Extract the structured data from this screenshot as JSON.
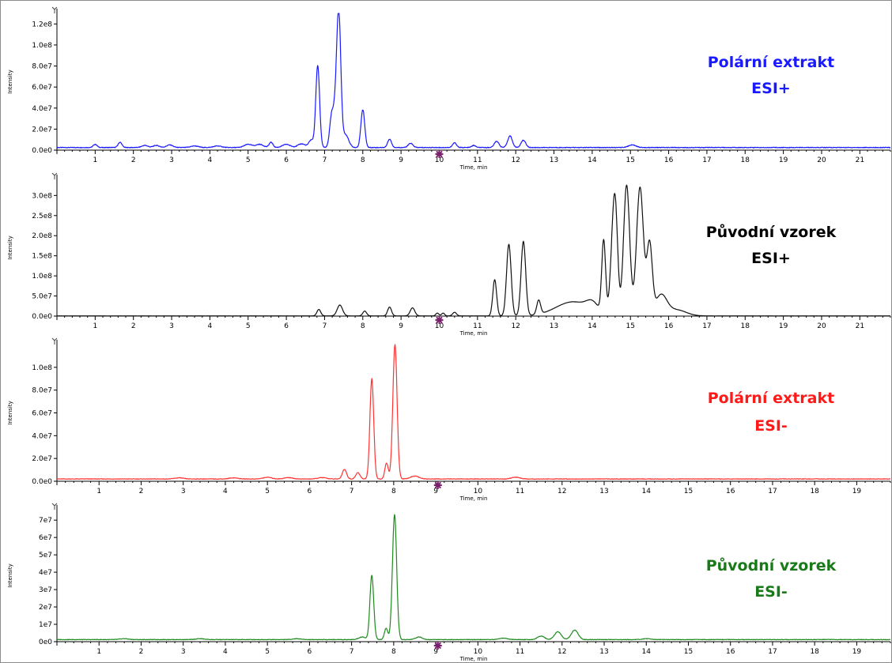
{
  "chart_data": [
    {
      "type": "line",
      "xlabel": "Time, min",
      "ylabel": "Intensity",
      "xlim": [
        0,
        21.8
      ],
      "ylim": [
        0,
        130000000
      ],
      "x_ticks": [
        1,
        2,
        3,
        4,
        5,
        6,
        7,
        8,
        9,
        10,
        11,
        12,
        13,
        14,
        15,
        16,
        17,
        18,
        19,
        20,
        21
      ],
      "y_ticks": [
        {
          "value": 0,
          "label": "0.0e0"
        },
        {
          "value": 20000000,
          "label": "2.0e7"
        },
        {
          "value": 40000000,
          "label": "4.0e7"
        },
        {
          "value": 60000000,
          "label": "6.0e7"
        },
        {
          "value": 80000000,
          "label": "8.0e7"
        },
        {
          "value": 100000000,
          "label": "1.0e8"
        },
        {
          "value": 120000000,
          "label": "1.2e8"
        }
      ],
      "color": "#1a1aff",
      "annotation": [
        "Polární extrakt",
        "ESI+"
      ],
      "annotation_color": "#1a1aff",
      "baseline": 2500000,
      "peaks": [
        [
          1.0,
          3000000,
          0.05
        ],
        [
          1.65,
          5000000,
          0.05
        ],
        [
          2.3,
          2000000,
          0.08
        ],
        [
          2.6,
          2000000,
          0.08
        ],
        [
          2.95,
          2500000,
          0.08
        ],
        [
          3.6,
          1500000,
          0.1
        ],
        [
          4.2,
          1500000,
          0.1
        ],
        [
          5.0,
          3000000,
          0.1
        ],
        [
          5.3,
          3000000,
          0.1
        ],
        [
          5.6,
          5000000,
          0.05
        ],
        [
          6.0,
          3000000,
          0.1
        ],
        [
          6.4,
          3500000,
          0.1
        ],
        [
          6.65,
          7000000,
          0.06
        ],
        [
          6.82,
          78000000,
          0.05
        ],
        [
          7.18,
          28000000,
          0.05
        ],
        [
          7.27,
          25000000,
          0.05
        ],
        [
          7.37,
          128000000,
          0.055
        ],
        [
          7.55,
          12000000,
          0.08
        ],
        [
          8.0,
          36000000,
          0.05
        ],
        [
          8.7,
          8000000,
          0.05
        ],
        [
          9.25,
          4000000,
          0.06
        ],
        [
          10.4,
          4500000,
          0.05
        ],
        [
          10.9,
          2000000,
          0.05
        ],
        [
          11.5,
          6000000,
          0.06
        ],
        [
          11.85,
          11000000,
          0.06
        ],
        [
          12.2,
          7000000,
          0.06
        ],
        [
          15.05,
          2500000,
          0.1
        ]
      ]
    },
    {
      "type": "line",
      "xlabel": "Time, min",
      "ylabel": "Intensity",
      "xlim": [
        0,
        21.8
      ],
      "ylim": [
        0,
        340000000
      ],
      "x_ticks": [
        1,
        2,
        3,
        4,
        5,
        6,
        7,
        8,
        9,
        10,
        11,
        12,
        13,
        14,
        15,
        16,
        17,
        18,
        19,
        20,
        21
      ],
      "y_ticks": [
        {
          "value": 0,
          "label": "0.0e0"
        },
        {
          "value": 50000000,
          "label": "5.0e7"
        },
        {
          "value": 100000000,
          "label": "1.0e8"
        },
        {
          "value": 150000000,
          "label": "1.5e8"
        },
        {
          "value": 200000000,
          "label": "2.0e8"
        },
        {
          "value": 250000000,
          "label": "2.5e8"
        },
        {
          "value": 300000000,
          "label": "3.0e8"
        }
      ],
      "color": "#111111",
      "annotation": [
        "Původní vzorek",
        "ESI+"
      ],
      "annotation_color": "#000000",
      "baseline": 500000,
      "peaks": [
        [
          6.85,
          16000000,
          0.05
        ],
        [
          7.4,
          27000000,
          0.07
        ],
        [
          8.05,
          12000000,
          0.05
        ],
        [
          8.7,
          22000000,
          0.05
        ],
        [
          9.3,
          20000000,
          0.06
        ],
        [
          9.95,
          7000000,
          0.04
        ],
        [
          10.1,
          7000000,
          0.04
        ],
        [
          10.4,
          9000000,
          0.05
        ],
        [
          11.45,
          90000000,
          0.05
        ],
        [
          11.82,
          178000000,
          0.06
        ],
        [
          12.2,
          185000000,
          0.06
        ],
        [
          12.6,
          35000000,
          0.05
        ],
        [
          13.5,
          35000000,
          0.45
        ],
        [
          14.0,
          20000000,
          0.15
        ],
        [
          14.3,
          180000000,
          0.05
        ],
        [
          14.55,
          190000000,
          0.07
        ],
        [
          14.62,
          160000000,
          0.06
        ],
        [
          14.9,
          325000000,
          0.08
        ],
        [
          15.25,
          320000000,
          0.09
        ],
        [
          15.5,
          175000000,
          0.07
        ],
        [
          15.8,
          50000000,
          0.15
        ],
        [
          16.2,
          15000000,
          0.25
        ]
      ]
    },
    {
      "type": "line",
      "xlabel": "Time, min",
      "ylabel": "Intensity",
      "xlim": [
        0,
        19.8
      ],
      "ylim": [
        0,
        120000000
      ],
      "x_ticks": [
        1,
        2,
        3,
        4,
        5,
        6,
        7,
        8,
        9,
        10,
        11,
        12,
        13,
        14,
        15,
        16,
        17,
        18,
        19
      ],
      "y_ticks": [
        {
          "value": 0,
          "label": "0.0e0"
        },
        {
          "value": 20000000,
          "label": "2.0e7"
        },
        {
          "value": 40000000,
          "label": "4.0e7"
        },
        {
          "value": 60000000,
          "label": "6.0e7"
        },
        {
          "value": 80000000,
          "label": "8.0e7"
        },
        {
          "value": 100000000,
          "label": "1.0e8"
        }
      ],
      "color": "#ff3333",
      "annotation": [
        "Polární extrakt",
        "ESI-"
      ],
      "annotation_color": "#ff1a1a",
      "baseline": 2000000,
      "peaks": [
        [
          2.9,
          1000000,
          0.1
        ],
        [
          4.2,
          1000000,
          0.1
        ],
        [
          5.0,
          1500000,
          0.1
        ],
        [
          5.5,
          1200000,
          0.1
        ],
        [
          6.3,
          1200000,
          0.1
        ],
        [
          6.83,
          8500000,
          0.05
        ],
        [
          7.15,
          5500000,
          0.05
        ],
        [
          7.48,
          88000000,
          0.045
        ],
        [
          7.83,
          14000000,
          0.04
        ],
        [
          8.03,
          118000000,
          0.05
        ],
        [
          8.5,
          2500000,
          0.1
        ],
        [
          10.9,
          1500000,
          0.1
        ]
      ]
    },
    {
      "type": "line",
      "xlabel": "Time, min",
      "ylabel": "Intensity",
      "xlim": [
        0,
        19.8
      ],
      "ylim": [
        0,
        76000000
      ],
      "x_ticks": [
        1,
        2,
        3,
        4,
        5,
        6,
        7,
        8,
        9,
        10,
        11,
        12,
        13,
        14,
        15,
        16,
        17,
        18,
        19
      ],
      "y_ticks": [
        {
          "value": 0,
          "label": "0e0"
        },
        {
          "value": 10000000,
          "label": "1e7"
        },
        {
          "value": 20000000,
          "label": "2e7"
        },
        {
          "value": 30000000,
          "label": "3e7"
        },
        {
          "value": 40000000,
          "label": "4e7"
        },
        {
          "value": 50000000,
          "label": "5e7"
        },
        {
          "value": 60000000,
          "label": "6e7"
        },
        {
          "value": 70000000,
          "label": "7e7"
        }
      ],
      "color": "#1f8a1f",
      "annotation": [
        "Původní vzorek",
        "ESI-"
      ],
      "annotation_color": "#1a7a1a",
      "baseline": 1200000,
      "peaks": [
        [
          1.6,
          500000,
          0.1
        ],
        [
          3.4,
          500000,
          0.1
        ],
        [
          5.7,
          500000,
          0.1
        ],
        [
          7.25,
          1500000,
          0.08
        ],
        [
          7.48,
          37000000,
          0.045
        ],
        [
          7.82,
          6500000,
          0.04
        ],
        [
          8.02,
          72000000,
          0.05
        ],
        [
          8.6,
          1500000,
          0.08
        ],
        [
          10.6,
          800000,
          0.1
        ],
        [
          11.5,
          2000000,
          0.08
        ],
        [
          11.9,
          4500000,
          0.08
        ],
        [
          12.3,
          5500000,
          0.08
        ],
        [
          14.0,
          500000,
          0.1
        ]
      ]
    }
  ]
}
